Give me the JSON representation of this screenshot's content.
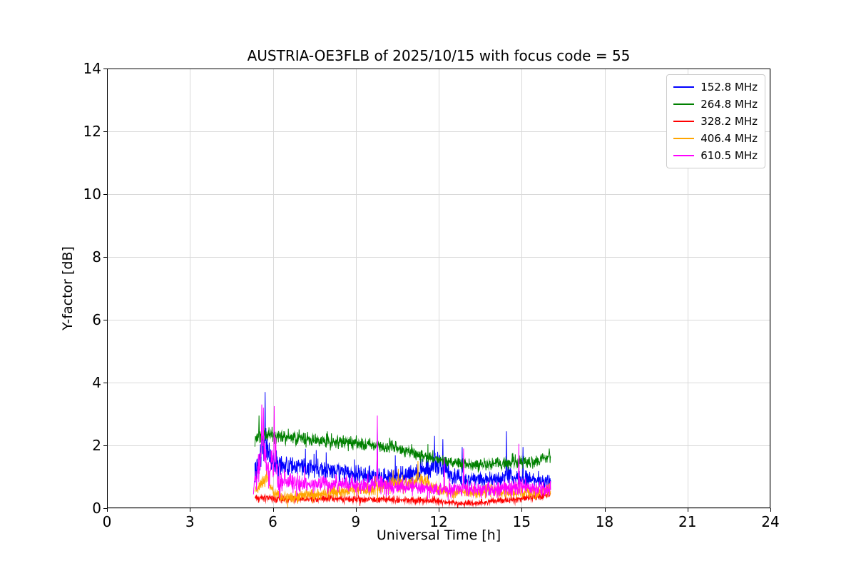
{
  "figure": {
    "background": "#ffffff"
  },
  "colors": {
    "grid": "#d9d9d9",
    "axes_frame": "#000000",
    "tick": "#000000",
    "legend_border": "#cccccc",
    "legend_background": "#ffffff"
  },
  "chart_data": {
    "type": "line",
    "title": "AUSTRIA-OE3FLB of 2025/10/15 with focus code = 55",
    "xlabel": "Universal Time [h]",
    "ylabel": "Y-factor [dB]",
    "xlim": [
      0,
      24
    ],
    "ylim": [
      0,
      14
    ],
    "xticks": [
      0,
      3,
      6,
      9,
      12,
      15,
      18,
      21,
      24
    ],
    "yticks": [
      0,
      2,
      4,
      6,
      8,
      10,
      12,
      14
    ],
    "grid": true,
    "legend_position": "upper right",
    "note": "Noisy spectral Y-factor traces visible only between ~5.3 h and ~16.1 h UT; base = mean level control points [t,dB], noise = half-amplitude of jitter [t,dB], spikes = isolated peaks [t,dB].",
    "series": [
      {
        "name": "152.8 MHz",
        "color": "#0000ff",
        "t_start": 5.35,
        "t_end": 16.05,
        "base": [
          [
            5.35,
            1.1
          ],
          [
            5.55,
            1.7
          ],
          [
            5.75,
            2.0
          ],
          [
            5.95,
            1.6
          ],
          [
            6.2,
            1.4
          ],
          [
            6.6,
            1.3
          ],
          [
            7.0,
            1.3
          ],
          [
            7.5,
            1.25
          ],
          [
            8.0,
            1.2
          ],
          [
            8.5,
            1.15
          ],
          [
            9.0,
            1.1
          ],
          [
            9.5,
            1.0
          ],
          [
            10.0,
            1.0
          ],
          [
            10.5,
            1.0
          ],
          [
            11.0,
            1.05
          ],
          [
            11.5,
            1.25
          ],
          [
            11.9,
            1.35
          ],
          [
            12.3,
            1.2
          ],
          [
            12.6,
            1.0
          ],
          [
            13.0,
            0.9
          ],
          [
            13.5,
            0.9
          ],
          [
            14.0,
            0.9
          ],
          [
            14.5,
            1.0
          ],
          [
            15.0,
            0.95
          ],
          [
            15.5,
            0.9
          ],
          [
            16.05,
            0.85
          ]
        ],
        "noise": [
          [
            5.35,
            0.55
          ],
          [
            6.0,
            0.55
          ],
          [
            7.0,
            0.4
          ],
          [
            8.0,
            0.38
          ],
          [
            9.0,
            0.35
          ],
          [
            10.0,
            0.4
          ],
          [
            11.0,
            0.45
          ],
          [
            12.0,
            0.5
          ],
          [
            13.0,
            0.35
          ],
          [
            14.0,
            0.35
          ],
          [
            15.0,
            0.4
          ],
          [
            16.05,
            0.35
          ]
        ],
        "spikes": [
          [
            5.72,
            3.7
          ],
          [
            5.6,
            2.95
          ],
          [
            9.78,
            2.6
          ],
          [
            11.85,
            2.3
          ],
          [
            12.15,
            2.2
          ],
          [
            12.85,
            1.95
          ],
          [
            14.45,
            2.45
          ],
          [
            15.05,
            1.95
          ]
        ]
      },
      {
        "name": "264.8 MHz",
        "color": "#008000",
        "t_start": 5.35,
        "t_end": 16.05,
        "base": [
          [
            5.35,
            2.15
          ],
          [
            5.6,
            2.3
          ],
          [
            6.0,
            2.3
          ],
          [
            6.5,
            2.25
          ],
          [
            7.0,
            2.2
          ],
          [
            7.5,
            2.15
          ],
          [
            8.0,
            2.1
          ],
          [
            8.5,
            2.1
          ],
          [
            9.0,
            2.05
          ],
          [
            9.5,
            2.0
          ],
          [
            10.0,
            1.95
          ],
          [
            10.5,
            1.9
          ],
          [
            11.0,
            1.8
          ],
          [
            11.5,
            1.65
          ],
          [
            12.0,
            1.55
          ],
          [
            12.5,
            1.45
          ],
          [
            13.0,
            1.4
          ],
          [
            13.5,
            1.38
          ],
          [
            14.0,
            1.4
          ],
          [
            14.5,
            1.42
          ],
          [
            15.0,
            1.45
          ],
          [
            15.5,
            1.5
          ],
          [
            16.05,
            1.65
          ]
        ],
        "noise": [
          [
            5.35,
            0.3
          ],
          [
            8.0,
            0.28
          ],
          [
            12.0,
            0.25
          ],
          [
            16.05,
            0.25
          ]
        ],
        "spikes": [
          [
            5.5,
            2.95
          ],
          [
            16.0,
            1.9
          ]
        ]
      },
      {
        "name": "328.2 MHz",
        "color": "#ff0000",
        "t_start": 5.35,
        "t_end": 16.05,
        "base": [
          [
            5.35,
            0.35
          ],
          [
            6.0,
            0.3
          ],
          [
            7.0,
            0.3
          ],
          [
            8.0,
            0.3
          ],
          [
            9.0,
            0.28
          ],
          [
            10.0,
            0.28
          ],
          [
            11.0,
            0.25
          ],
          [
            12.0,
            0.22
          ],
          [
            12.8,
            0.15
          ],
          [
            13.5,
            0.18
          ],
          [
            14.0,
            0.22
          ],
          [
            14.5,
            0.25
          ],
          [
            15.0,
            0.3
          ],
          [
            15.5,
            0.35
          ],
          [
            16.05,
            0.42
          ]
        ],
        "noise": [
          [
            5.35,
            0.15
          ],
          [
            10.0,
            0.12
          ],
          [
            13.0,
            0.1
          ],
          [
            16.05,
            0.15
          ]
        ],
        "spikes": [
          [
            15.95,
            0.75
          ]
        ]
      },
      {
        "name": "406.4 MHz",
        "color": "#ffa500",
        "t_start": 5.35,
        "t_end": 16.05,
        "base": [
          [
            5.35,
            0.5
          ],
          [
            5.6,
            0.85
          ],
          [
            5.8,
            1.0
          ],
          [
            6.0,
            0.5
          ],
          [
            6.3,
            0.35
          ],
          [
            6.8,
            0.32
          ],
          [
            7.5,
            0.45
          ],
          [
            8.0,
            0.5
          ],
          [
            8.5,
            0.55
          ],
          [
            9.0,
            0.6
          ],
          [
            9.5,
            0.6
          ],
          [
            10.0,
            0.7
          ],
          [
            10.5,
            0.78
          ],
          [
            11.0,
            0.8
          ],
          [
            11.3,
            0.88
          ],
          [
            11.6,
            0.78
          ],
          [
            12.0,
            0.6
          ],
          [
            12.5,
            0.5
          ],
          [
            13.0,
            0.5
          ],
          [
            13.5,
            0.5
          ],
          [
            14.0,
            0.55
          ],
          [
            14.5,
            0.5
          ],
          [
            15.0,
            0.5
          ],
          [
            15.5,
            0.5
          ],
          [
            16.05,
            0.6
          ]
        ],
        "noise": [
          [
            5.35,
            0.3
          ],
          [
            6.0,
            0.22
          ],
          [
            8.0,
            0.25
          ],
          [
            10.0,
            0.3
          ],
          [
            11.3,
            0.35
          ],
          [
            12.0,
            0.25
          ],
          [
            16.05,
            0.25
          ]
        ],
        "spikes": [
          [
            5.78,
            1.45
          ],
          [
            11.25,
            1.5
          ]
        ]
      },
      {
        "name": "610.5 MHz",
        "color": "#ff00ff",
        "t_start": 5.3,
        "t_end": 16.05,
        "base": [
          [
            5.3,
            0.8
          ],
          [
            5.5,
            1.3
          ],
          [
            5.62,
            1.9
          ],
          [
            5.75,
            1.5
          ],
          [
            5.9,
            1.1
          ],
          [
            6.05,
            1.7
          ],
          [
            6.2,
            0.95
          ],
          [
            6.5,
            0.8
          ],
          [
            7.0,
            0.8
          ],
          [
            7.5,
            0.75
          ],
          [
            8.0,
            0.78
          ],
          [
            8.5,
            0.75
          ],
          [
            9.0,
            0.7
          ],
          [
            9.5,
            0.7
          ],
          [
            9.8,
            0.85
          ],
          [
            10.0,
            0.72
          ],
          [
            10.5,
            0.7
          ],
          [
            11.0,
            0.68
          ],
          [
            11.5,
            0.65
          ],
          [
            12.0,
            0.62
          ],
          [
            12.5,
            0.6
          ],
          [
            13.0,
            0.6
          ],
          [
            13.5,
            0.6
          ],
          [
            14.0,
            0.6
          ],
          [
            14.5,
            0.65
          ],
          [
            15.0,
            0.7
          ],
          [
            15.5,
            0.62
          ],
          [
            16.05,
            0.6
          ]
        ],
        "noise": [
          [
            5.3,
            0.5
          ],
          [
            5.65,
            0.95
          ],
          [
            6.1,
            0.85
          ],
          [
            6.5,
            0.4
          ],
          [
            7.0,
            0.35
          ],
          [
            8.0,
            0.35
          ],
          [
            9.0,
            0.32
          ],
          [
            9.8,
            0.45
          ],
          [
            10.5,
            0.32
          ],
          [
            11.5,
            0.3
          ],
          [
            12.5,
            0.3
          ],
          [
            13.5,
            0.3
          ],
          [
            14.5,
            0.32
          ],
          [
            15.0,
            0.35
          ],
          [
            16.05,
            0.3
          ]
        ],
        "spikes": [
          [
            5.6,
            3.3
          ],
          [
            5.66,
            3.2
          ],
          [
            6.05,
            3.25
          ],
          [
            9.78,
            2.95
          ],
          [
            12.2,
            1.6
          ],
          [
            12.9,
            1.9
          ],
          [
            14.9,
            2.05
          ]
        ]
      }
    ]
  }
}
